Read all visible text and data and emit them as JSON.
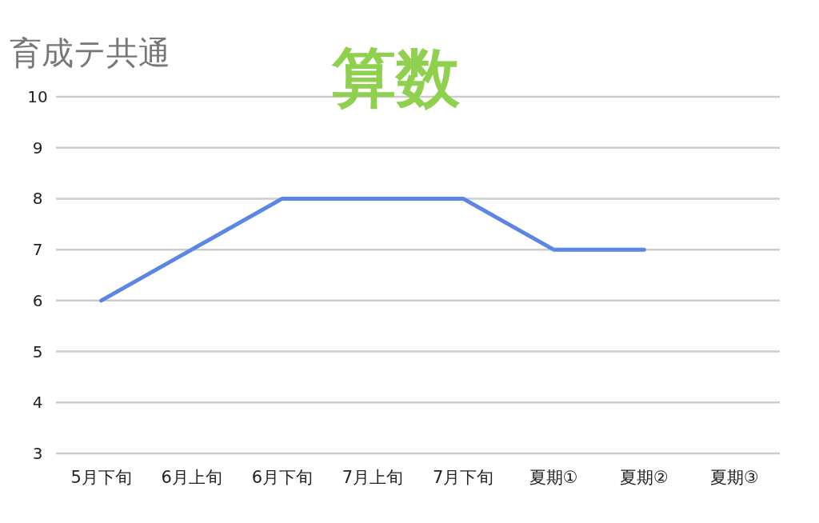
{
  "chart_data": {
    "type": "line",
    "title": "算数",
    "subtitle": "育成テ共通",
    "categories": [
      "5月下旬",
      "6月上旬",
      "6月下旬",
      "7月上旬",
      "7月下旬",
      "夏期①",
      "夏期②",
      "夏期③"
    ],
    "values": [
      6,
      7,
      8,
      8,
      8,
      7,
      7,
      null
    ],
    "color": "#5b86e5",
    "ylim": [
      3,
      10
    ],
    "yticks": [
      3,
      4,
      5,
      6,
      7,
      8,
      9,
      10
    ],
    "grid": "y"
  }
}
